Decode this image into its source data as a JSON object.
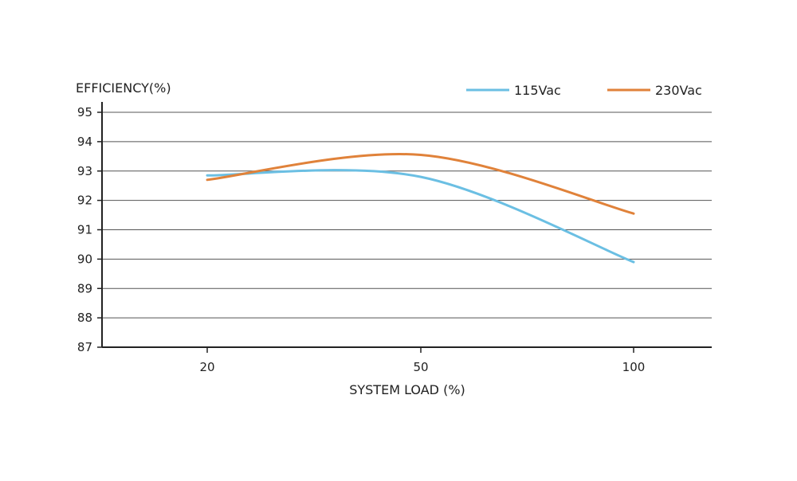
{
  "chart_data": {
    "type": "line",
    "ylabel": "EFFICIENCY(%)",
    "xlabel": "SYSTEM LOAD (%)",
    "categories": [
      "20",
      "50",
      "100"
    ],
    "y_ticks": [
      87,
      88,
      89,
      90,
      91,
      92,
      93,
      94,
      95
    ],
    "ylim": [
      87,
      95
    ],
    "grid": "horizontal",
    "legend_position": "top-right",
    "series": [
      {
        "name": "115Vac",
        "color": "#6bbfe3",
        "values": [
          92.85,
          92.8,
          89.9
        ]
      },
      {
        "name": "230Vac",
        "color": "#e0823a",
        "values": [
          92.7,
          93.55,
          91.55
        ]
      }
    ]
  }
}
